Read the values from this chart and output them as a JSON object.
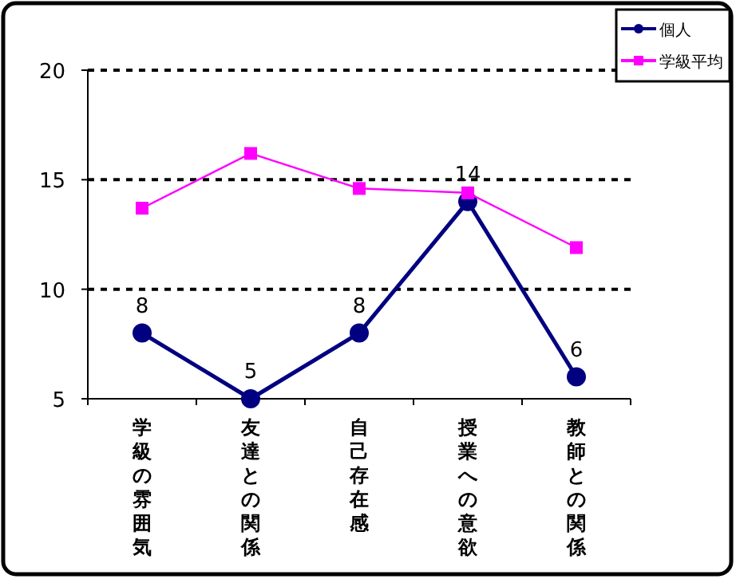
{
  "chart_data": {
    "type": "line",
    "categories": [
      "学級の雰囲気",
      "友達との関係",
      "自己存在感",
      "授業への意欲",
      "教師との関係"
    ],
    "series": [
      {
        "name": "個人",
        "color": "#000080",
        "values": [
          8,
          5,
          8,
          14,
          6
        ],
        "marker": "circle",
        "value_labels": [
          "8",
          "5",
          "8",
          "14",
          "6"
        ]
      },
      {
        "name": "学級平均",
        "color": "#ff00ff",
        "values": [
          13.7,
          16.2,
          14.6,
          14.4,
          11.9
        ],
        "marker": "square"
      }
    ],
    "ylim": [
      5,
      20
    ],
    "yticks": [
      5,
      10,
      15,
      20
    ],
    "grid": "y",
    "legend": "top right"
  }
}
